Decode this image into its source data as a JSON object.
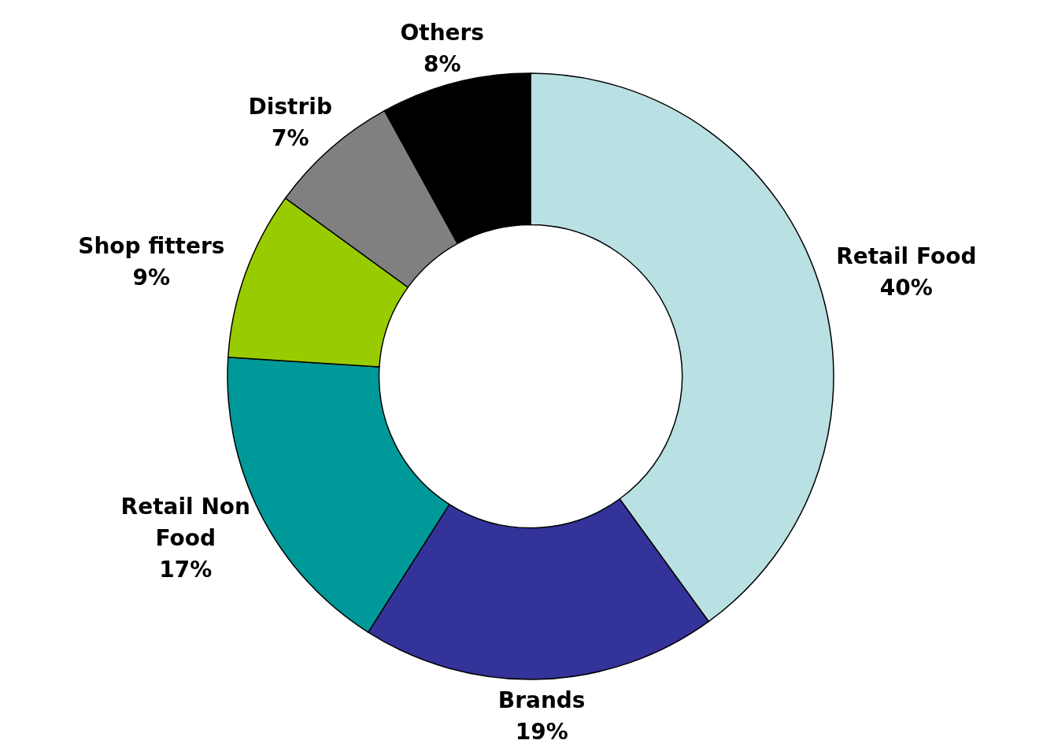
{
  "chart_data": {
    "type": "donut",
    "categories": [
      "Retail Food",
      "Brands",
      "Retail Non Food",
      "Shop fitters",
      "Distrib",
      "Others"
    ],
    "values": [
      40,
      19,
      17,
      9,
      7,
      8
    ],
    "colors": [
      "#b9e0e3",
      "#333399",
      "#009999",
      "#99cc00",
      "#808080",
      "#000000"
    ],
    "value_labels": [
      "40%",
      "19%",
      "17%",
      "9%",
      "7%",
      "8%"
    ]
  }
}
